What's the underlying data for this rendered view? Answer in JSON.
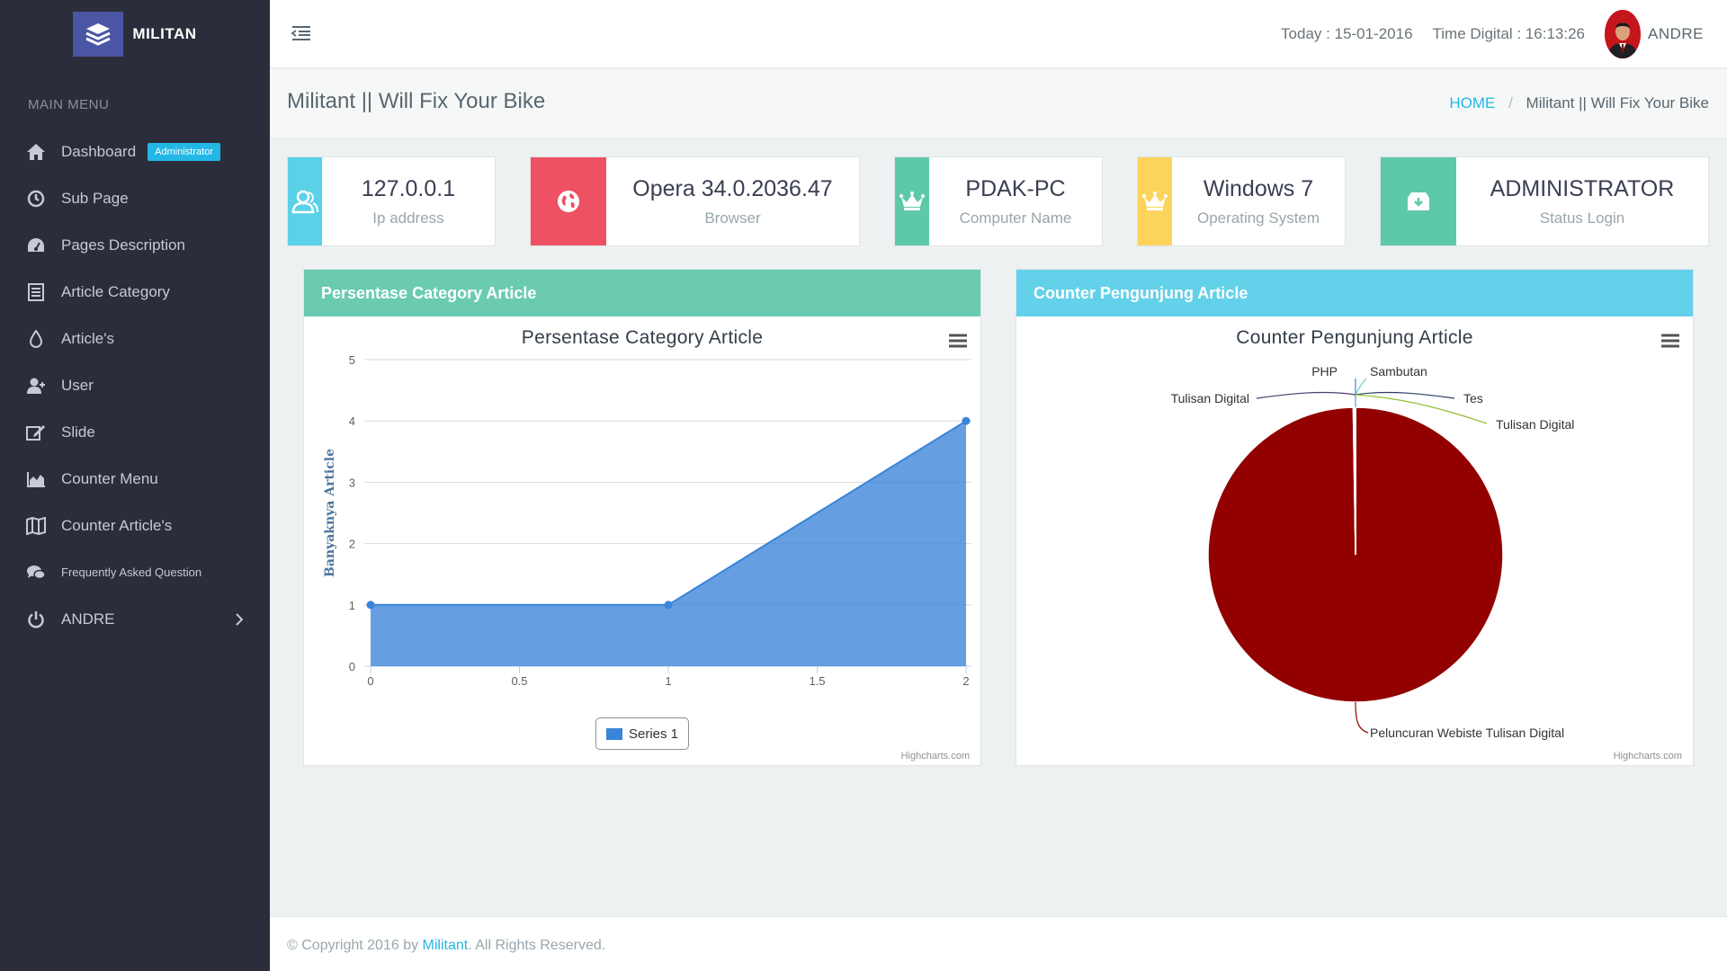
{
  "sidebar": {
    "brand": "MILITAN",
    "menu_header": "MAIN MENU",
    "items": [
      {
        "label": "Dashboard",
        "icon": "home-icon",
        "badge": "Administrator"
      },
      {
        "label": "Sub Page",
        "icon": "clock-icon"
      },
      {
        "label": "Pages Description",
        "icon": "dashboard-icon"
      },
      {
        "label": "Article Category",
        "icon": "list-icon"
      },
      {
        "label": "Article's",
        "icon": "drop-icon"
      },
      {
        "label": "User",
        "icon": "user-icon"
      },
      {
        "label": "Slide",
        "icon": "edit-icon"
      },
      {
        "label": "Counter Menu",
        "icon": "area-chart-icon"
      },
      {
        "label": "Counter Article's",
        "icon": "map-icon"
      },
      {
        "label": "Frequently Asked Question",
        "icon": "comments-icon"
      },
      {
        "label": "ANDRE",
        "icon": "power-icon"
      }
    ]
  },
  "topbar": {
    "today": "Today : 15-01-2016",
    "time": "Time Digital : 16:13:26",
    "user": "ANDRE"
  },
  "page": {
    "title": "Militant || Will Fix Your Bike",
    "breadcrumb_home": "HOME",
    "breadcrumb_current": "Militant || Will Fix Your Bike"
  },
  "info_boxes": [
    {
      "value": "127.0.0.1",
      "label": "Ip address",
      "color": "#5bd1e8",
      "icon": "users-icon"
    },
    {
      "value": "Opera 34.0.2036.47",
      "label": "Browser",
      "color": "#ee5163",
      "icon": "globe-icon"
    },
    {
      "value": "PDAK-PC",
      "label": "Computer Name",
      "color": "#5ec9a8",
      "icon": "crown-icon"
    },
    {
      "value": "Windows 7",
      "label": "Operating System",
      "color": "#fcd45c",
      "icon": "crown-icon"
    },
    {
      "value": "ADMINISTRATOR",
      "label": "Status Login",
      "color": "#5ec9a8",
      "icon": "archive-download-icon"
    }
  ],
  "panels": {
    "left_title": "Persentase Category Article",
    "left_color": "#6acbb0",
    "right_title": "Counter Pengunjung Article",
    "right_color": "#63d1ea",
    "credit": "Highcharts.com"
  },
  "chart_data": [
    {
      "type": "area",
      "title": "Persentase Category Article",
      "ylabel": "Banyaknya Article",
      "xlabel": "",
      "x": [
        0,
        1,
        2
      ],
      "series": [
        {
          "name": "Series 1",
          "values": [
            1,
            1,
            4
          ],
          "color": "#3a84d9"
        }
      ],
      "xlim": [
        0,
        2
      ],
      "ylim": [
        0,
        5
      ],
      "x_ticks": [
        "0",
        "0.5",
        "1",
        "1.5",
        "2"
      ],
      "y_ticks": [
        "0",
        "1",
        "2",
        "3",
        "4",
        "5"
      ],
      "grid": true,
      "legend": "bottom-center"
    },
    {
      "type": "pie",
      "title": "Counter Pengunjung Article",
      "slices": [
        {
          "label": "Peluncuran Webiste Tulisan Digital",
          "value": 99.75,
          "color": "#920000"
        },
        {
          "label": "Tulisan Digital",
          "value": 0.05,
          "color": "#4a3f70"
        },
        {
          "label": "PHP",
          "value": 0.05,
          "color": "#3a84d9"
        },
        {
          "label": "Sambutan",
          "value": 0.05,
          "color": "#6fc0c8"
        },
        {
          "label": "Tes",
          "value": 0.05,
          "color": "#2c3e6a"
        },
        {
          "label": "Tulisan Digital",
          "value": 0.05,
          "color": "#90c030"
        }
      ]
    }
  ],
  "footer": {
    "prefix": "© Copyright 2016 by ",
    "brand": "Militant",
    "suffix": ". All Rights Reserved."
  }
}
